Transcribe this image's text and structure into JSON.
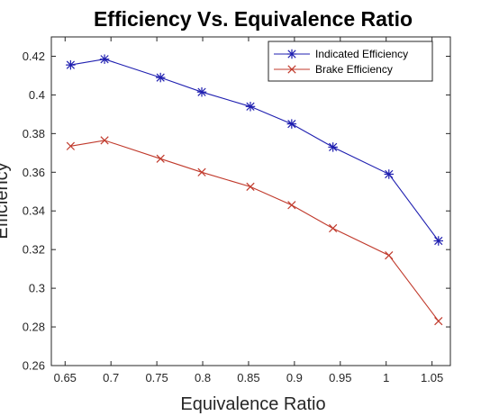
{
  "chart_data": {
    "type": "line",
    "title": "Efficiency Vs. Equivalence Ratio",
    "xlabel": "Equivalence Ratio",
    "ylabel": "Efficiency",
    "xlim": [
      0.635,
      1.07
    ],
    "ylim": [
      0.26,
      0.43
    ],
    "xticks": [
      0.65,
      0.7,
      0.75,
      0.8,
      0.85,
      0.9,
      0.95,
      1,
      1.05
    ],
    "xtick_labels": [
      "0.65",
      "0.7",
      "0.75",
      "0.8",
      "0.85",
      "0.9",
      "0.95",
      "1",
      "1.05"
    ],
    "yticks": [
      0.26,
      0.28,
      0.3,
      0.32,
      0.34,
      0.36,
      0.38,
      0.4,
      0.42
    ],
    "ytick_labels": [
      "0.26",
      "0.28",
      "0.3",
      "0.32",
      "0.34",
      "0.36",
      "0.38",
      "0.4",
      "0.42"
    ],
    "grid": false,
    "legend_position": "top-right",
    "series": [
      {
        "name": "Indicated Efficiency",
        "color": "#1f1fb0",
        "marker": "asterisk",
        "x": [
          0.656,
          0.693,
          0.754,
          0.799,
          0.852,
          0.897,
          0.942,
          1.003,
          1.057
        ],
        "y": [
          0.4155,
          0.4185,
          0.409,
          0.4015,
          0.394,
          0.385,
          0.373,
          0.359,
          0.3245
        ]
      },
      {
        "name": "Brake Efficiency",
        "color": "#c0392b",
        "marker": "x",
        "x": [
          0.656,
          0.693,
          0.754,
          0.799,
          0.852,
          0.897,
          0.942,
          1.003,
          1.057
        ],
        "y": [
          0.3735,
          0.3765,
          0.367,
          0.36,
          0.3525,
          0.343,
          0.331,
          0.317,
          0.283
        ]
      }
    ]
  }
}
